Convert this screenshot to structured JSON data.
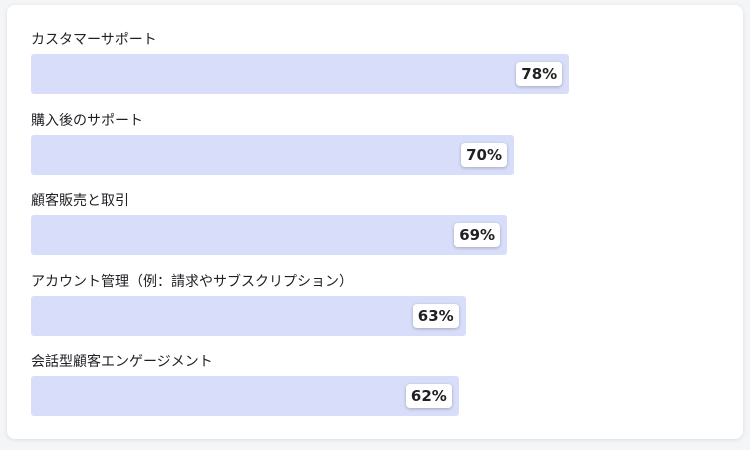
{
  "chart_data": {
    "type": "bar",
    "orientation": "horizontal",
    "categories": [
      "カスタマーサポート",
      "購入後のサポート",
      "顧客販売と取引",
      "アカウント管理（例：請求やサブスクリプション）",
      "会話型顧客エンゲージメント"
    ],
    "values": [
      78,
      70,
      69,
      63,
      62
    ],
    "value_labels": [
      "78%",
      "70%",
      "69%",
      "63%",
      "62%"
    ],
    "xlim": [
      0,
      100
    ],
    "unit": "%",
    "grid": false,
    "legend": "none",
    "bar_color": "#d8defa"
  }
}
